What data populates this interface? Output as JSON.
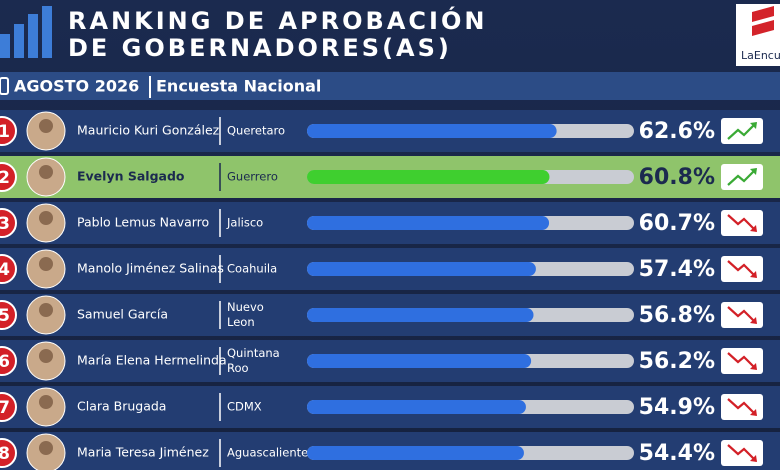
{
  "chart_data": {
    "type": "bar",
    "title_lines": [
      "RANKING DE APROBACIÓN",
      "DE GOBERNADORES(AS)"
    ],
    "logo": "LaEncu",
    "date": "AGOSTO 2026",
    "subtitle": "Encuesta Nacional",
    "ranks": [
      1,
      2,
      3,
      4,
      5,
      6,
      7,
      8
    ],
    "categories": [
      "Mauricio Kuri González",
      "Evelyn Salgado",
      "Pablo Lemus Navarro",
      "Manolo Jiménez Salinas",
      "Samuel García",
      "María Elena Hermelinda",
      "Clara Brugada",
      "Maria Teresa Jiménez"
    ],
    "states": [
      [
        "Queretaro"
      ],
      [
        "Guerrero"
      ],
      [
        "Jalisco"
      ],
      [
        "Coahuila"
      ],
      [
        "Nuevo",
        "Leon"
      ],
      [
        "Quintana",
        "Roo"
      ],
      [
        "CDMX"
      ],
      [
        "Aguascalientes"
      ]
    ],
    "values": [
      62.6,
      60.8,
      60.7,
      57.4,
      56.8,
      56.2,
      54.9,
      54.4
    ],
    "value_labels": [
      "62.6%",
      "60.8%",
      "60.7%",
      "57.4%",
      "56.8%",
      "56.2%",
      "54.9%",
      "54.4%"
    ],
    "trends": [
      "up",
      "up",
      "down",
      "down",
      "down",
      "down",
      "down",
      "down"
    ],
    "highlight": 1,
    "color": "#2f6fe0",
    "highlight_color": "#3fcf2f",
    "xlim": [
      0,
      82
    ]
  }
}
